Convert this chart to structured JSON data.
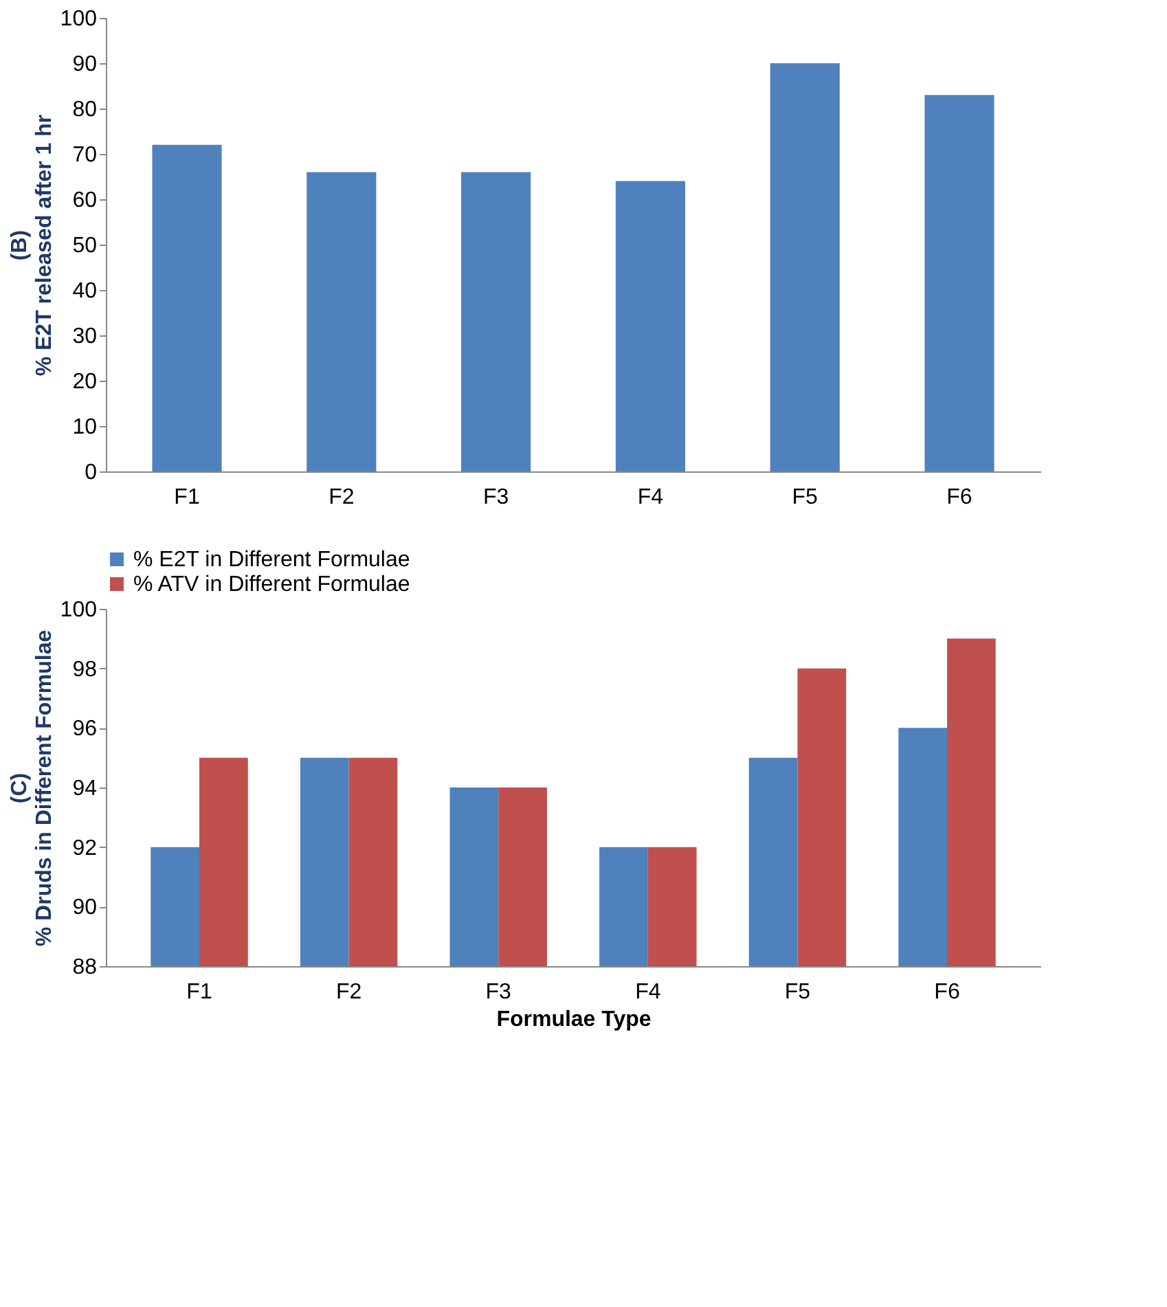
{
  "chart_data": [
    {
      "type": "bar",
      "ylabel": "(B)\n% E2T released after 1 hr",
      "categories": [
        "F1",
        "F2",
        "F3",
        "F4",
        "F5",
        "F6"
      ],
      "values": [
        72,
        66,
        66,
        64,
        90,
        83
      ],
      "color": "#4f81bd",
      "ylim": [
        0,
        100
      ],
      "yticks": [
        0,
        10,
        20,
        30,
        40,
        50,
        60,
        70,
        80,
        90,
        100
      ],
      "grid": false,
      "legend": false
    },
    {
      "type": "bar",
      "ylabel": "(C)\n% Druds in Different Formulae",
      "xlabel": "Formulae Type",
      "categories": [
        "F1",
        "F2",
        "F3",
        "F4",
        "F5",
        "F6"
      ],
      "series": [
        {
          "name": "% E2T in Different Formulae",
          "color": "#4f81bd",
          "values": [
            92,
            95,
            94,
            92,
            95,
            96
          ]
        },
        {
          "name": "% ATV in Different Formulae",
          "color": "#c0504d",
          "values": [
            95,
            95,
            94,
            92,
            98,
            99
          ]
        }
      ],
      "ylim": [
        88,
        100
      ],
      "yticks": [
        88,
        90,
        92,
        94,
        96,
        98,
        100
      ],
      "grid": false,
      "legend": "top"
    }
  ]
}
